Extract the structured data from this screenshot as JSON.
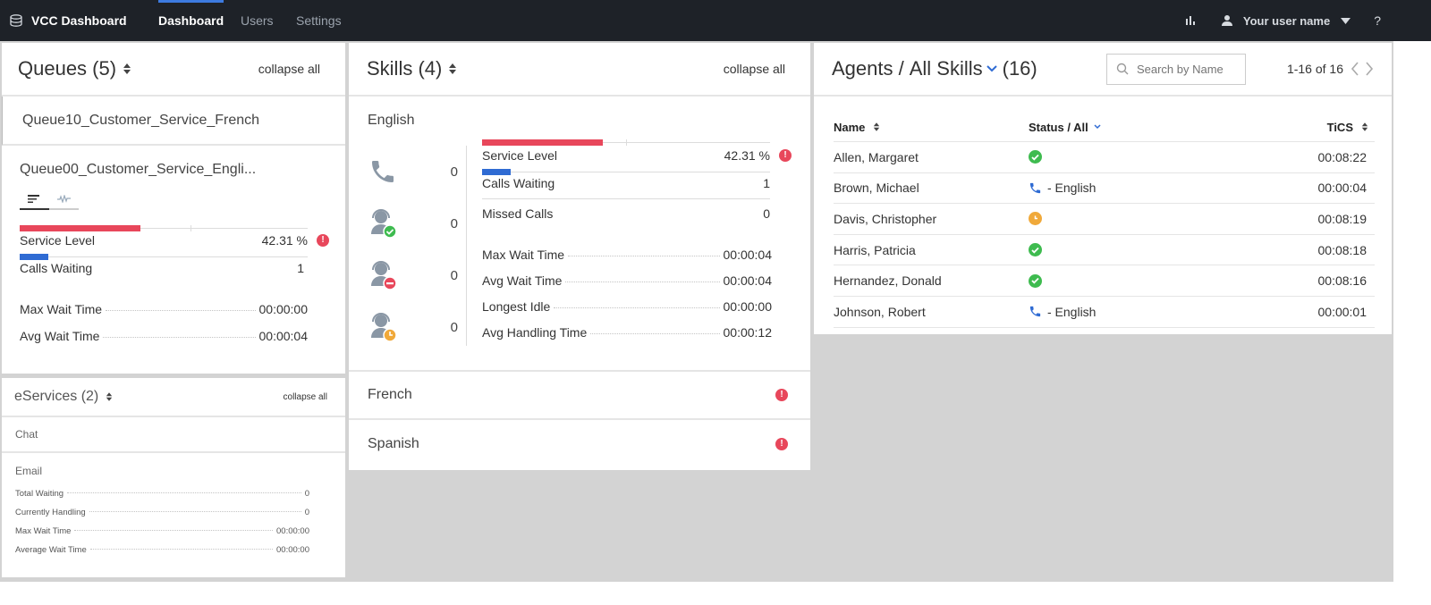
{
  "nav": {
    "app_title": "VCC Dashboard",
    "tabs": [
      "Dashboard",
      "Users",
      "Settings"
    ],
    "user_label": "Your user name",
    "help": "?"
  },
  "queues": {
    "title": "Queues (5)",
    "collapse": "collapse all",
    "collapsed_item": "Queue10_Customer_Service_French",
    "expanded_item": "Queue00_Customer_Service_Engli...",
    "service_level_label": "Service Level",
    "service_level_value": "42.31 %",
    "service_level_fill": 0.42,
    "calls_waiting_label": "Calls Waiting",
    "calls_waiting_value": "1",
    "max_wait_label": "Max Wait Time",
    "max_wait_value": "00:00:00",
    "avg_wait_label": "Avg Wait Time",
    "avg_wait_value": "00:00:04"
  },
  "eservices": {
    "title": "eServices (2)",
    "collapse": "collapse all",
    "chat": "Chat",
    "email": "Email",
    "rows": [
      {
        "label": "Total Waiting",
        "value": "0"
      },
      {
        "label": "Currently Handling",
        "value": "0"
      },
      {
        "label": "Max Wait Time",
        "value": "00:00:00"
      },
      {
        "label": "Average Wait Time",
        "value": "00:00:00"
      }
    ]
  },
  "skills": {
    "title": "Skills (4)",
    "collapse": "collapse all",
    "expanded_skill": "English",
    "counts": [
      "0",
      "0",
      "0",
      "0"
    ],
    "service_level_label": "Service Level",
    "service_level_value": "42.31 %",
    "service_level_fill": 0.42,
    "calls_waiting_label": "Calls Waiting",
    "calls_waiting_value": "1",
    "missed_calls_label": "Missed Calls",
    "missed_calls_value": "0",
    "timing": [
      {
        "label": "Max Wait Time",
        "value": "00:00:04"
      },
      {
        "label": "Avg Wait Time",
        "value": "00:00:04"
      },
      {
        "label": "Longest Idle",
        "value": "00:00:00"
      },
      {
        "label": "Avg Handling Time",
        "value": "00:00:12"
      }
    ],
    "other_skills": [
      "French",
      "Spanish"
    ]
  },
  "agents": {
    "title_prefix": "Agents /",
    "skill_filter": "All Skills",
    "count": "(16)",
    "search_placeholder": "Search by Name",
    "pagination": "1-16 of 16",
    "col_name": "Name",
    "col_status": "Status / All",
    "col_tics": "TiCS",
    "rows": [
      {
        "name": "Allen, Margaret",
        "status": "ready",
        "status_text": "",
        "tics": "00:08:22"
      },
      {
        "name": "Brown, Michael",
        "status": "on-call",
        "status_text": "- English",
        "tics": "00:00:04"
      },
      {
        "name": "Davis, Christopher",
        "status": "away",
        "status_text": "",
        "tics": "00:08:19"
      },
      {
        "name": "Harris, Patricia",
        "status": "ready",
        "status_text": "",
        "tics": "00:08:18"
      },
      {
        "name": "Hernandez, Donald",
        "status": "ready",
        "status_text": "",
        "tics": "00:08:16"
      },
      {
        "name": "Johnson, Robert",
        "status": "on-call",
        "status_text": "- English",
        "tics": "00:00:01"
      }
    ]
  },
  "colors": {
    "topbar": "#1e2228",
    "accent_blue": "#2f6bd3",
    "alert_red": "#e8475b",
    "ready_green": "#3ebb4f",
    "away_orange": "#f0a93a"
  }
}
